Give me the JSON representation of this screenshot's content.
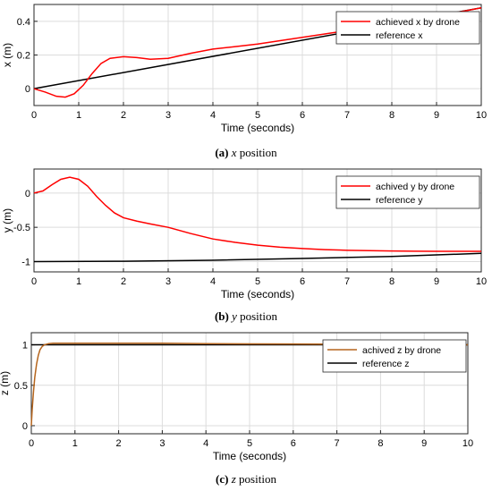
{
  "chart_data": [
    {
      "type": "line",
      "xlabel": "Time (seconds)",
      "ylabel": "x (m)",
      "xlim": [
        0,
        10
      ],
      "ylim": [
        -0.1,
        0.5
      ],
      "xticks": [
        "0",
        "1",
        "2",
        "3",
        "4",
        "5",
        "6",
        "7",
        "8",
        "9",
        "10"
      ],
      "yticks": [
        "0",
        "0.2",
        "0.4"
      ],
      "ytick_values": [
        0,
        0.2,
        0.4
      ],
      "grid": true,
      "legend_position": "top-right",
      "caption": {
        "label": "(a)",
        "var": "x",
        "text": "position"
      },
      "series": [
        {
          "name": "achieved x by drone",
          "color": "#ff0000",
          "x": [
            0,
            0.25,
            0.5,
            0.7,
            0.9,
            1.1,
            1.3,
            1.5,
            1.7,
            2.0,
            2.3,
            2.6,
            3.0,
            3.5,
            4.0,
            4.5,
            5.0,
            5.5,
            6.0,
            6.5,
            7.0,
            7.5,
            8.0,
            8.5,
            9.0,
            9.5,
            10.0
          ],
          "values": [
            0,
            -0.02,
            -0.045,
            -0.05,
            -0.03,
            0.02,
            0.09,
            0.15,
            0.18,
            0.19,
            0.185,
            0.175,
            0.18,
            0.21,
            0.235,
            0.25,
            0.265,
            0.285,
            0.305,
            0.325,
            0.345,
            0.365,
            0.39,
            0.41,
            0.43,
            0.455,
            0.48
          ]
        },
        {
          "name": "reference x",
          "color": "#000000",
          "x": [
            0,
            10
          ],
          "values": [
            0,
            0.48
          ]
        }
      ]
    },
    {
      "type": "line",
      "xlabel": "Time (seconds)",
      "ylabel": "y (m)",
      "xlim": [
        0,
        10
      ],
      "ylim": [
        -1.15,
        0.35
      ],
      "xticks": [
        "0",
        "1",
        "2",
        "3",
        "4",
        "5",
        "6",
        "7",
        "8",
        "9",
        "10"
      ],
      "yticks": [
        "0",
        "-0.5",
        "-1"
      ],
      "ytick_values": [
        0,
        -0.5,
        -1
      ],
      "grid": true,
      "legend_position": "top-right",
      "caption": {
        "label": "(b)",
        "var": "y",
        "text": "position"
      },
      "series": [
        {
          "name": "achived y by drone",
          "color": "#ff0000",
          "x": [
            0,
            0.2,
            0.4,
            0.6,
            0.8,
            1.0,
            1.2,
            1.4,
            1.6,
            1.8,
            2.0,
            2.3,
            2.6,
            3.0,
            3.5,
            4.0,
            4.5,
            5.0,
            5.5,
            6.0,
            6.5,
            7.0,
            7.5,
            8.0,
            8.5,
            9.0,
            9.5,
            10.0
          ],
          "values": [
            0,
            0.03,
            0.12,
            0.2,
            0.23,
            0.2,
            0.1,
            -0.05,
            -0.18,
            -0.29,
            -0.36,
            -0.41,
            -0.45,
            -0.5,
            -0.59,
            -0.67,
            -0.72,
            -0.76,
            -0.79,
            -0.81,
            -0.825,
            -0.835,
            -0.84,
            -0.845,
            -0.848,
            -0.85,
            -0.85,
            -0.85
          ]
        },
        {
          "name": "reference y",
          "color": "#000000",
          "x": [
            0,
            2,
            4,
            6,
            8,
            10
          ],
          "values": [
            -1.0,
            -0.995,
            -0.98,
            -0.955,
            -0.925,
            -0.88
          ]
        }
      ]
    },
    {
      "type": "line",
      "xlabel": "Time (seconds)",
      "ylabel": "z (m)",
      "xlim": [
        0,
        10
      ],
      "ylim": [
        -0.1,
        1.15
      ],
      "xticks": [
        "0",
        "1",
        "2",
        "3",
        "4",
        "5",
        "6",
        "7",
        "8",
        "9",
        "10"
      ],
      "yticks": [
        "0",
        "0.5",
        "1"
      ],
      "ytick_values": [
        0,
        0.5,
        1
      ],
      "grid": true,
      "legend_position": "top-right",
      "caption": {
        "label": "(c)",
        "var": "z",
        "text": "position"
      },
      "series": [
        {
          "name": "achived z by drone",
          "color": "#b5651d",
          "x": [
            0,
            0.02,
            0.05,
            0.08,
            0.12,
            0.16,
            0.2,
            0.25,
            0.3,
            0.4,
            0.5,
            0.7,
            1.0,
            2.0,
            3.0,
            4.0,
            5.0,
            6.0,
            7.0,
            8.0,
            9.0,
            10.0
          ],
          "values": [
            0,
            0.2,
            0.42,
            0.6,
            0.76,
            0.87,
            0.94,
            0.98,
            1.0,
            1.015,
            1.02,
            1.02,
            1.02,
            1.02,
            1.02,
            1.015,
            1.012,
            1.01,
            1.008,
            1.005,
            1.003,
            1.0
          ]
        },
        {
          "name": "reference z",
          "color": "#000000",
          "x": [
            0,
            10
          ],
          "values": [
            1,
            1
          ]
        }
      ]
    }
  ]
}
